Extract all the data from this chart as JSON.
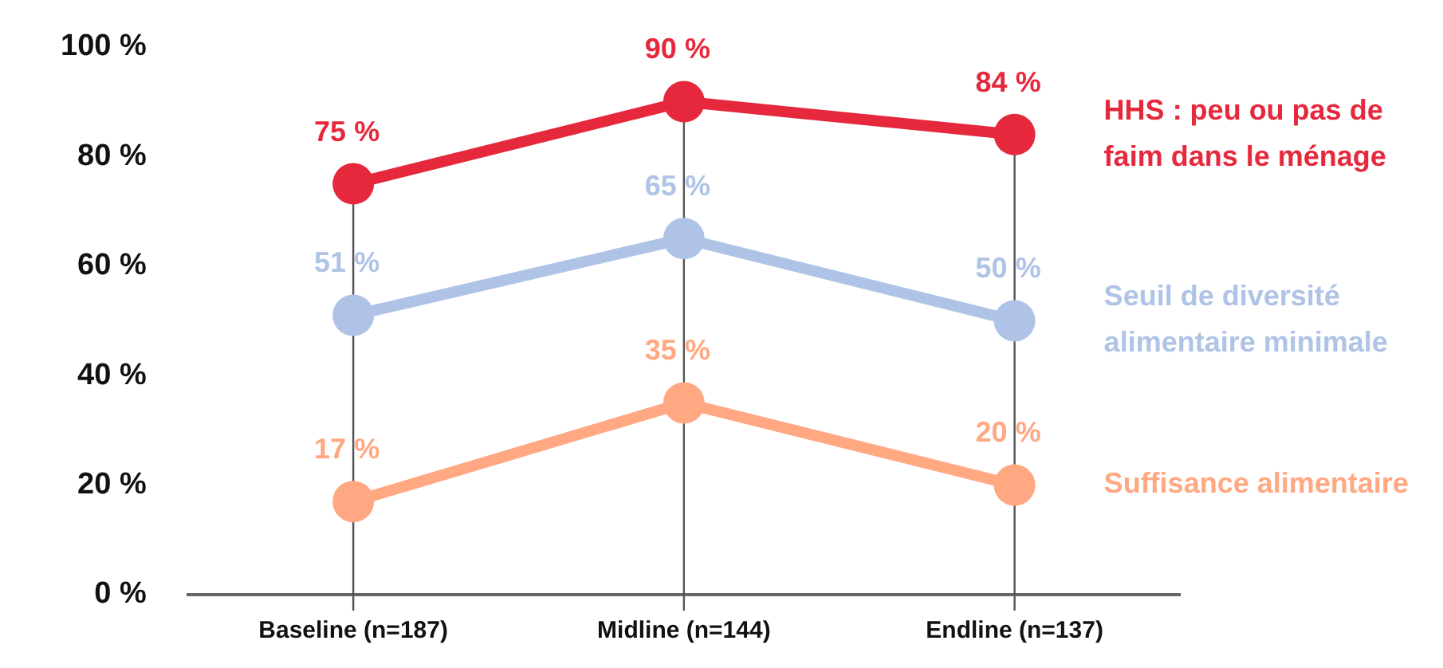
{
  "chart_data": {
    "type": "line",
    "categories": [
      "Baseline (n=187)",
      "Midline (n=144)",
      "Endline (n=137)"
    ],
    "series": [
      {
        "name": "HHS : peu ou pas de faim dans le ménage",
        "color": "#e6283c",
        "values": [
          75,
          90,
          84
        ],
        "value_labels": [
          "75 %",
          "90 %",
          "84 %"
        ]
      },
      {
        "name": "Seuil de diversité alimentaire minimale",
        "color": "#aec3e6",
        "values": [
          51,
          65,
          50
        ],
        "value_labels": [
          "51 %",
          "65 %",
          "50 %"
        ]
      },
      {
        "name": "Suffisance alimentaire",
        "color": "#ffa882",
        "values": [
          17,
          35,
          20
        ],
        "value_labels": [
          "17 %",
          "35 %",
          "20 %"
        ]
      }
    ],
    "ylim": [
      0,
      100
    ],
    "yticks": [
      {
        "value": 0,
        "label": "0 %"
      },
      {
        "value": 20,
        "label": "20 %"
      },
      {
        "value": 40,
        "label": "40 %"
      },
      {
        "value": 60,
        "label": "60 %"
      },
      {
        "value": 80,
        "label": "80 %"
      },
      {
        "value": 100,
        "label": "100 %"
      }
    ],
    "grid": "x",
    "legend": "right",
    "marker": "circle",
    "line_style": "solid"
  }
}
